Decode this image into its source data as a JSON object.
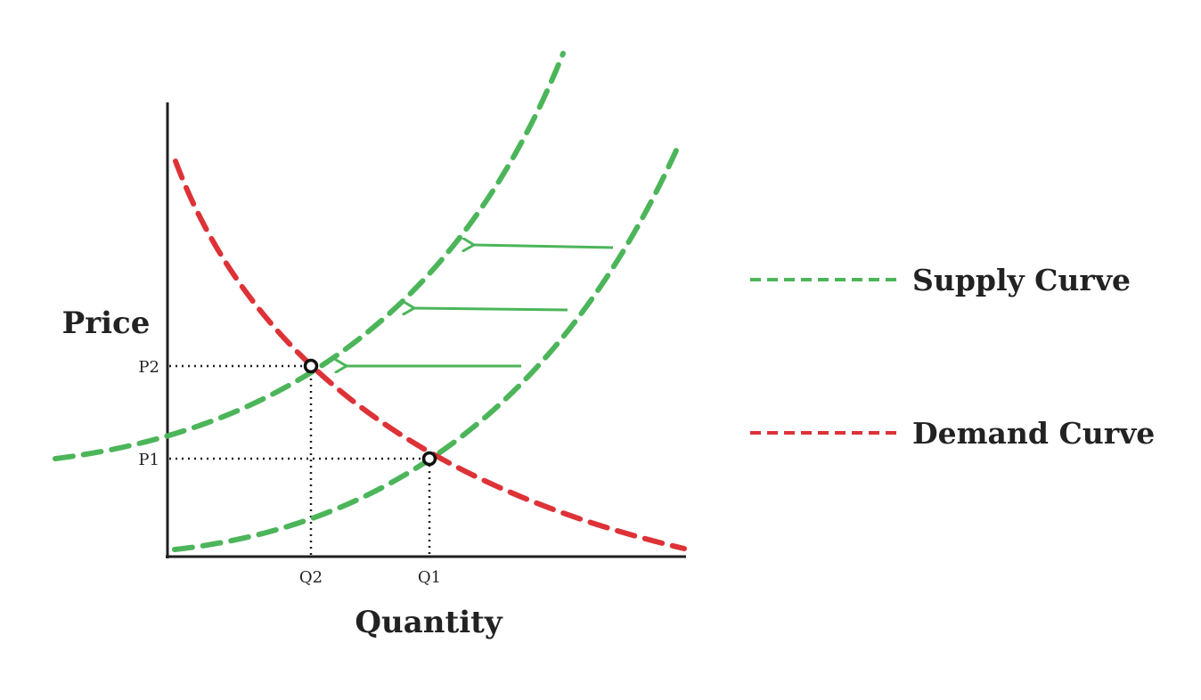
{
  "diagram": {
    "axes": {
      "y_title": "Price",
      "x_title": "Quantity"
    },
    "price_levels": [
      "P2",
      "P1"
    ],
    "quantity_levels": [
      "Q2",
      "Q1"
    ],
    "legend": {
      "supply_label": "Supply Curve",
      "demand_label": "Demand Curve"
    },
    "colors": {
      "supply": "#4cb55a",
      "demand": "#dd3237",
      "axis": "#1f1f1f",
      "guide": "#1f1f1f"
    },
    "shift_arrows": {
      "count": 3,
      "direction": "left"
    }
  }
}
